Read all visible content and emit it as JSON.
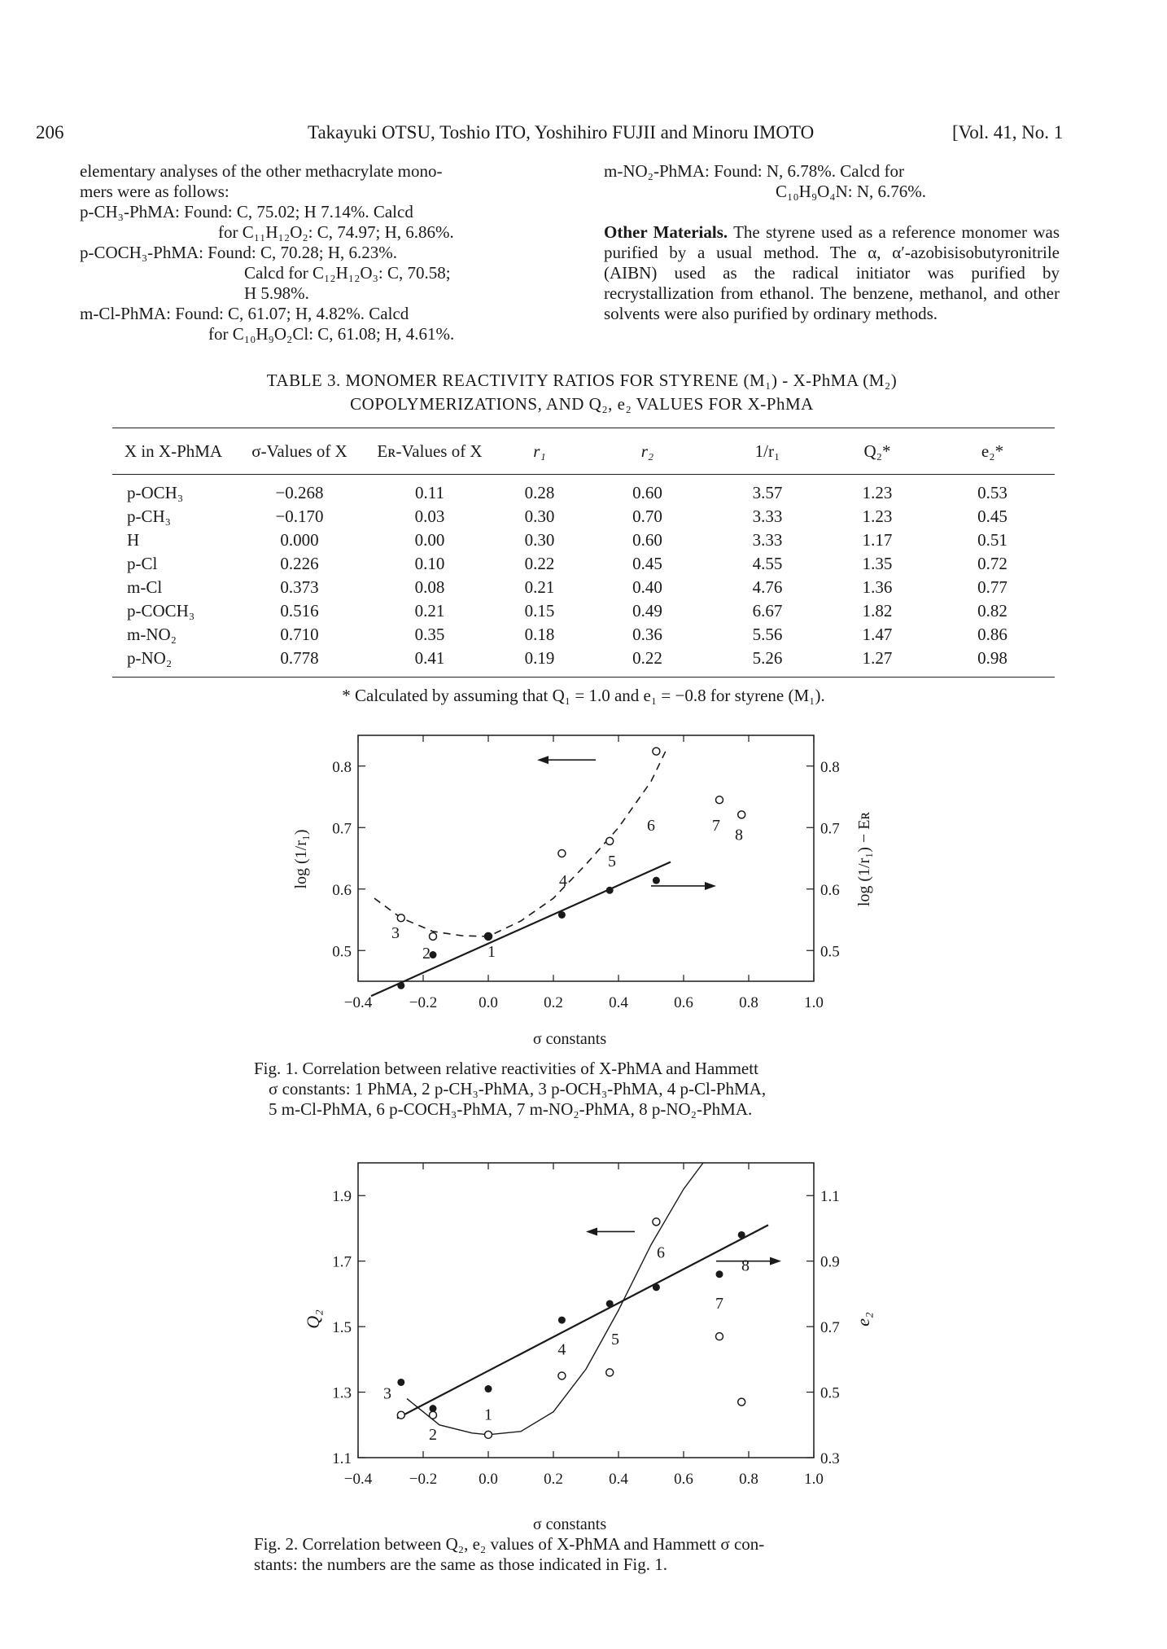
{
  "header": {
    "page_number": "206",
    "authors": "Takayuki OTSU, Toshio ITO, Yoshihiro FUJII and Minoru IMOTO",
    "volume": "[Vol. 41, No. 1"
  },
  "left_column": {
    "lines": [
      "elementary analyses of the other methacrylate mono-",
      "mers were as follows:",
      "p-CH₃-PhMA:  Found:  C, 75.02;  H 7.14%.  Calcd",
      "for C₁₁H₁₂O₂:  C, 74.97;  H, 6.86%.",
      "p-COCH₃-PhMA:  Found:  C, 70.28;  H, 6.23%.",
      "Calcd  for  C₁₂H₁₂O₃:  C, 70.58;",
      "H 5.98%.",
      "m-Cl-PhMA:  Found:  C, 61.07;  H, 4.82%.  Calcd",
      "for C₁₀H₉O₂Cl:  C, 61.08;  H, 4.61%."
    ]
  },
  "right_column": {
    "line1": "m-NO₂-PhMA:  Found:  N,  6.78%.  Calcd  for",
    "line2": "C₁₀H₉O₄N:  N, 6.76%.",
    "other_heading": "Other Materials.",
    "other_text": "The styrene used as a reference monomer was purified by a usual method. The α, α′-azobisisobutyronitrile (AIBN) used as the radical initiator was purified by recrystallization from ethanol. The benzene, methanol, and other solvents were also purified by ordinary methods."
  },
  "table3": {
    "caption_line1": "TABLE 3.  MONOMER REACTIVITY RATIOS FOR STYRENE (M₁) - X-PhMA (M₂)",
    "caption_line2": "COPOLYMERIZATIONS, AND Q₂, e₂ VALUES FOR X-PhMA",
    "headers": [
      "X in X-PhMA",
      "σ-Values of X",
      "Eʀ-Values of X",
      "r₁",
      "r₂",
      "1/r₁",
      "Q₂*",
      "e₂*"
    ],
    "rows": [
      [
        "p-OCH₃",
        "−0.268",
        "0.11",
        "0.28",
        "0.60",
        "3.57",
        "1.23",
        "0.53"
      ],
      [
        "p-CH₃",
        "−0.170",
        "0.03",
        "0.30",
        "0.70",
        "3.33",
        "1.23",
        "0.45"
      ],
      [
        "H",
        "0.000",
        "0.00",
        "0.30",
        "0.60",
        "3.33",
        "1.17",
        "0.51"
      ],
      [
        "p-Cl",
        "0.226",
        "0.10",
        "0.22",
        "0.45",
        "4.55",
        "1.35",
        "0.72"
      ],
      [
        "m-Cl",
        "0.373",
        "0.08",
        "0.21",
        "0.40",
        "4.76",
        "1.36",
        "0.77"
      ],
      [
        "p-COCH₃",
        "0.516",
        "0.21",
        "0.15",
        "0.49",
        "6.67",
        "1.82",
        "0.82"
      ],
      [
        "m-NO₂",
        "0.710",
        "0.35",
        "0.18",
        "0.36",
        "5.56",
        "1.47",
        "0.86"
      ],
      [
        "p-NO₂",
        "0.778",
        "0.41",
        "0.19",
        "0.22",
        "5.26",
        "1.27",
        "0.98"
      ]
    ],
    "footnote": "*  Calculated by assuming that Q₁ = 1.0 and e₁ = −0.8 for styrene (M₁)."
  },
  "fig1": {
    "caption_line1": "Fig. 1.  Correlation between relative reactivities of X-PhMA and Hammett",
    "caption_line2": "σ constants:  1 PhMA,  2 p-CH₃-PhMA,  3 p-OCH₃-PhMA,  4 p-Cl-PhMA,",
    "caption_line3": "5 m-Cl-PhMA,  6 p-COCH₃-PhMA,  7 m-NO₂-PhMA,  8 p-NO₂-PhMA."
  },
  "fig2": {
    "caption_line1": "Fig. 2.  Correlation between Q₂, e₂ values of X-PhMA and Hammett σ con-",
    "caption_line2": "stants:  the numbers are the same as those indicated in Fig. 1."
  },
  "chart_data": [
    {
      "type": "scatter",
      "title": "",
      "xlabel": "σ constants",
      "ylabel_left": "log (1/r₁)",
      "ylabel_right": "log (1/r₁) − Eʀ",
      "xlim": [
        -0.4,
        1.0
      ],
      "ylim": [
        0.45,
        0.85
      ],
      "x_ticks": [
        "−0.4",
        "−0.2",
        "0.0",
        "0.2",
        "0.4",
        "0.6",
        "0.8",
        "1.0"
      ],
      "y_ticks_left": [
        "0.5",
        "0.6",
        "0.7",
        "0.8"
      ],
      "y_ticks_right": [
        "0.5",
        "0.6",
        "0.7",
        "0.8"
      ],
      "series": [
        {
          "marker": "open circle",
          "axis": "left",
          "x": [
            -0.268,
            -0.17,
            0.0,
            0.226,
            0.373,
            0.516,
            0.71,
            0.778
          ],
          "y": [
            0.553,
            0.523,
            0.523,
            0.658,
            0.678,
            0.824,
            0.745,
            0.721
          ]
        },
        {
          "marker": "filled circle",
          "axis": "right",
          "x": [
            -0.268,
            -0.17,
            0.0,
            0.226,
            0.373,
            0.516
          ],
          "y": [
            0.443,
            0.493,
            0.523,
            0.558,
            0.598,
            0.614
          ]
        }
      ],
      "point_labels": [
        "1",
        "2",
        "3",
        "4",
        "5",
        "6",
        "7",
        "8"
      ],
      "fit_line": {
        "x": [
          -0.36,
          0.56
        ],
        "y": [
          0.426,
          0.644
        ]
      },
      "fit_curve": {
        "x": [
          -0.35,
          -0.268,
          -0.17,
          -0.08,
          0.0,
          0.1,
          0.2,
          0.3,
          0.4,
          0.5,
          0.55
        ],
        "y": [
          0.585,
          0.553,
          0.531,
          0.524,
          0.523,
          0.548,
          0.585,
          0.64,
          0.7,
          0.775,
          0.83
        ]
      },
      "arrows": [
        "pointing left toward the left axis (dashed curve)",
        "pointing right toward the right axis (solid line)"
      ]
    },
    {
      "type": "scatter",
      "title": "",
      "xlabel": "σ constants",
      "ylabel_left": "Q₂",
      "ylabel_right": "e₂",
      "xlim": [
        -0.4,
        1.0
      ],
      "ylim_left": [
        1.1,
        2.0
      ],
      "ylim_right": [
        0.3,
        1.2
      ],
      "x_ticks": [
        "−0.4",
        "−0.2",
        "0.0",
        "0.2",
        "0.4",
        "0.6",
        "0.8",
        "1.0"
      ],
      "y_ticks_left": [
        "1.1",
        "1.3",
        "1.5",
        "1.7",
        "1.9"
      ],
      "y_ticks_right": [
        "0.3",
        "0.5",
        "0.7",
        "0.9",
        "1.1"
      ],
      "series": [
        {
          "marker": "open circle",
          "axis": "left",
          "x": [
            -0.268,
            -0.17,
            0.0,
            0.226,
            0.373,
            0.516,
            0.71,
            0.778
          ],
          "y": [
            1.23,
            1.23,
            1.17,
            1.35,
            1.36,
            1.82,
            1.47,
            1.27
          ]
        },
        {
          "marker": "filled circle",
          "axis": "right",
          "x": [
            -0.268,
            -0.17,
            0.0,
            0.226,
            0.373,
            0.516,
            0.71,
            0.778
          ],
          "y": [
            0.53,
            0.45,
            0.51,
            0.72,
            0.77,
            0.82,
            0.86,
            0.98
          ]
        }
      ],
      "point_labels": [
        "1",
        "2",
        "3",
        "4",
        "5",
        "6",
        "7",
        "8"
      ],
      "fit_line_e2": {
        "x": [
          -0.28,
          0.86
        ],
        "y": [
          0.42,
          1.01
        ]
      },
      "fit_curve_q2": {
        "x": [
          -0.25,
          -0.15,
          -0.05,
          0.0,
          0.1,
          0.2,
          0.3,
          0.4,
          0.5,
          0.6,
          0.66
        ],
        "y": [
          1.28,
          1.2,
          1.175,
          1.17,
          1.18,
          1.24,
          1.37,
          1.55,
          1.75,
          1.92,
          2.0
        ]
      },
      "arrows": [
        "pointing left toward the Q₂ axis (curve)",
        "pointing right toward the e₂ axis (line)"
      ]
    }
  ]
}
